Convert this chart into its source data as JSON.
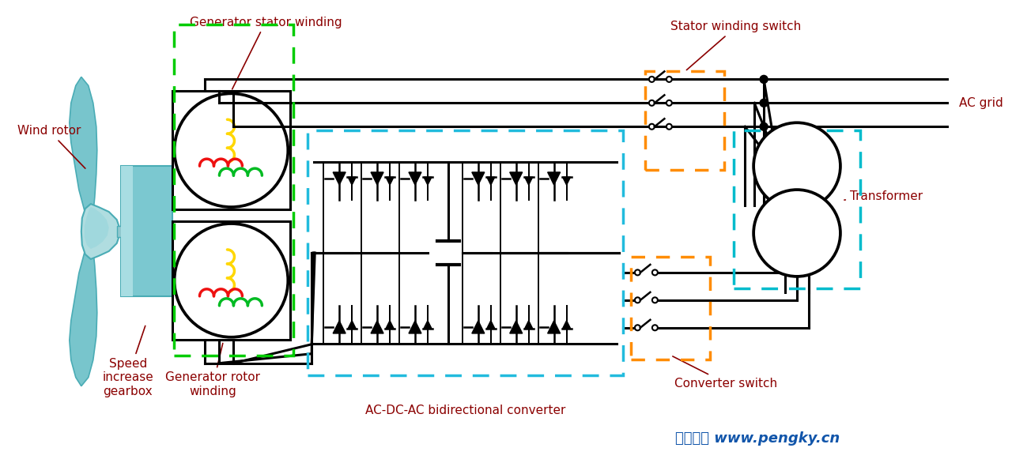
{
  "bg_color": "#ffffff",
  "green_dashed": "#00CC00",
  "cyan_dashed": "#22BBDD",
  "orange_dashed": "#FF8C00",
  "teal_dashed": "#00BBCC",
  "wire_color": "#000000",
  "label_color": "#8B0000",
  "watermark_color": "#1155AA",
  "blade_color_light": "#B0DDE0",
  "blade_color_mid": "#78C5CC",
  "blade_color_dark": "#4AACB5",
  "gearbox_color": "#7BC8D0",
  "labels": {
    "wind_rotor": "Wind rotor",
    "speed_gearbox": "Speed\nincrease\ngearbox",
    "stator_winding": "Generator stator winding",
    "rotor_winding": "Generator rotor\nwinding",
    "converter": "AC-DC-AC bidirectional converter",
    "stator_switch": "Stator winding switch",
    "converter_switch": "Converter switch",
    "transformer": "Transformer",
    "ac_grid": "AC grid",
    "watermark": "鹏茂科艺 www.pengky.cn"
  }
}
